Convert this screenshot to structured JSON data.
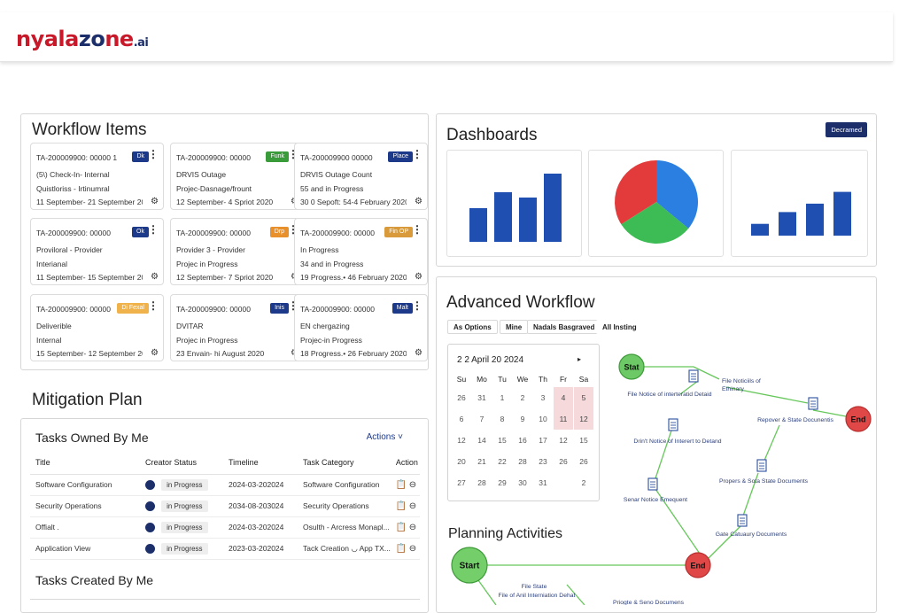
{
  "brand": {
    "part1": "nyala",
    "part2": "zo",
    "part3": "ne",
    "ai": ".ai"
  },
  "workflow": {
    "title": "Workflow Items",
    "cards": [
      {
        "id": "TA-200009900: 00000 1",
        "badge": "Dk",
        "badge_color": "#1d3a8a",
        "l1": "(5\\) Check-In- Internal",
        "l2": "Quistloriss - Irtinumral",
        "l3": "11 September- 21 September 2020"
      },
      {
        "id": "TA-200009900: 00000",
        "badge": "Funk",
        "badge_color": "#3a9b3a",
        "l1": "DRVIS Outage",
        "l2": "Projec-Dasnage/frount",
        "l3": "12 September- 4 Spriot 2020"
      },
      {
        "id": "TA-200009900 00000",
        "badge": "Place",
        "badge_color": "#1d3a8a",
        "l1": "DRVIS Outage Count",
        "l2": "55 and in Progress",
        "l3": "30 0 Sepoft: 54-4 February 2020"
      },
      {
        "id": "TA-200009900: 00000",
        "badge": "Ok",
        "badge_color": "#1d3a8a",
        "l1": "Proviloral - Provider",
        "l2": "Interianal",
        "l3": "11 September- 15 September 2020"
      },
      {
        "id": "TA-200009900: 00000",
        "badge": "Drp",
        "badge_color": "#e8902b",
        "l1": "Provider  3 - Provider",
        "l2": "Projec in Progress",
        "l3": "12 September- 7 Spriot 2020"
      },
      {
        "id": "TA-200009900: 00000",
        "badge": "Fin OP",
        "badge_color": "#d89a3a",
        "l1": "In Progress",
        "l2": "34 and in Progress",
        "l3": "19 Progress.• 46 February 2020"
      },
      {
        "id": "TA-200009900: 00000",
        "badge": "Di Fexal",
        "badge_color": "#f0b24a",
        "l1": "Deliverible",
        "l2": "Internal",
        "l3": "15 September- 12 September 2020"
      },
      {
        "id": "TA-200009900: 00000",
        "badge": "Inis",
        "badge_color": "#1d3a8a",
        "l1": "DVITAR",
        "l2": "Projec in Progress",
        "l3": "23 Envain-   hi August 2020"
      },
      {
        "id": "TA-200009900: 00000",
        "badge": "Malt",
        "badge_color": "#1d3a8a",
        "l1": "EN chergazing",
        "l2": "Projec-in Progress",
        "l3": "18 Progress.• 26 February 2020"
      }
    ]
  },
  "mitigation": {
    "title": "Mitigation Plan",
    "owned_title": "Tasks Owned By Me",
    "actions_label": "Actions ˅",
    "headers": [
      "Title",
      "Creator Status",
      "Timeline",
      "Task Category",
      "Action"
    ],
    "rows": [
      {
        "title": "Software Configuration",
        "status": "in Progress",
        "timeline": "2024-03-202024",
        "category": "Software Configuration"
      },
      {
        "title": "Security Operations",
        "status": "in Progress",
        "timeline": "2034-08-203024",
        "category": "Security Operations"
      },
      {
        "title": "Offialt .",
        "status": "in Progress",
        "timeline": "2024-03-202024",
        "category": "Osulth - Arcress Monapl..."
      },
      {
        "title": "Application View",
        "status": "in Progress",
        "timeline": "2023-03-202024",
        "category": "Tack Creation ◡ App TX..."
      }
    ],
    "created_title": "Tasks Created By Me"
  },
  "dashboards": {
    "title": "Dashboards",
    "button": "Decramed",
    "colors": {
      "blue": "#1f4fb0",
      "red": "#e33b3b",
      "green": "#3dbb55",
      "pie_blue": "#2a7fe0"
    }
  },
  "chart_data": [
    {
      "type": "bar",
      "values": [
        38,
        56,
        50,
        77
      ]
    },
    {
      "type": "pie",
      "values": [
        34,
        30,
        36
      ]
    },
    {
      "type": "bar",
      "values": [
        14,
        28,
        38,
        52
      ]
    }
  ],
  "advanced": {
    "title": "Advanced Workflow",
    "tabs": [
      "As Options",
      "Mine",
      "Nadals Basgraved",
      "All Insting"
    ],
    "calendar": {
      "header": "2 2  April 20 2024",
      "nav": "▸",
      "days": [
        "Su",
        "Mo",
        "Tu",
        "We",
        "Th",
        "Fr",
        "Sa"
      ],
      "cells": [
        "26",
        "31",
        "1",
        "2",
        "3",
        "4",
        "5",
        "6",
        "7",
        "8",
        "9",
        "10",
        "11",
        "12",
        "12",
        "14",
        "15",
        "16",
        "17",
        "12",
        "15",
        "20",
        "21",
        "22",
        "28",
        "23",
        "26",
        "26",
        "27",
        "28",
        "29",
        "30",
        "31",
        "",
        "2"
      ]
    },
    "planning_title": "Planning Activities",
    "nodes": {
      "start1": "Stat",
      "end1": "End",
      "start2": "Start",
      "end2": "End",
      "docs": [
        "File Noticiils of Ethinary",
        "File Notice of interteratid Detaid",
        "Repover & State Docunentis",
        "Drin't Notice of Interert to Detand",
        "Propers & Sota State Documents",
        "Senar Notice Emequent",
        "Gate Catuaury Documents",
        "File State",
        "File of Anil Interniation Dehat",
        "Priogte & Seno Documens"
      ]
    }
  }
}
